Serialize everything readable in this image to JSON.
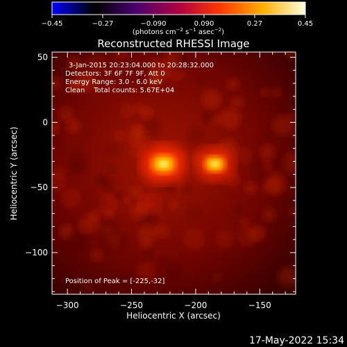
{
  "window": {
    "timestamp": "17-May-2022 15:34"
  },
  "colors": {
    "background": "#000000",
    "foreground": "#ffffff",
    "colormap": [
      "#0000ff",
      "#000000",
      "#4a0070",
      "#b00040",
      "#ff3a00",
      "#ffb000",
      "#ffffe0"
    ]
  },
  "colorbar": {
    "tick_labels": [
      "−0.45",
      "−0.27",
      "−0.090",
      "0.090",
      "0.27",
      "0.45"
    ],
    "range": [
      -0.45,
      0.45
    ],
    "units": "(photons cm",
    "units_exp1": "−2",
    "units_mid": " s",
    "units_exp2": "−1",
    "units_tail": " asec",
    "units_exp3": "−2",
    "units_close": ")"
  },
  "chart_data": {
    "type": "heatmap",
    "title": "Reconstructed RHESSI Image",
    "xlabel": "Heliocentric X (arcsec)",
    "ylabel": "Heliocentric Y (arcsec)",
    "xlim": [
      -312,
      -122
    ],
    "ylim": [
      -132,
      54
    ],
    "x_ticks": [
      -300,
      -250,
      -200,
      -150
    ],
    "y_ticks": [
      50,
      0,
      -50,
      -100
    ],
    "x_tick_labels": [
      "−300",
      "−250",
      "−200",
      "−150"
    ],
    "y_tick_labels": [
      "50",
      "0",
      "−50",
      "−100"
    ],
    "annotations": [
      "3-Jan-2015 20:23:04.000 to 20:28:32.000",
      "Detectors: 3F 6F 7F 9F, Att 0",
      "Energy Range: 3.0 - 6.0 keV",
      "Clean    Total counts: 5.67E+04"
    ],
    "peak_label": "Position of Peak = [-225,-32]",
    "sources": [
      {
        "x": -225,
        "y": -32,
        "peak": 1.0
      },
      {
        "x": -185,
        "y": -32,
        "peak": 0.85
      },
      {
        "x": -236,
        "y": -63,
        "peak": 0.35
      }
    ],
    "peak_position": [
      -225,
      -32
    ]
  }
}
